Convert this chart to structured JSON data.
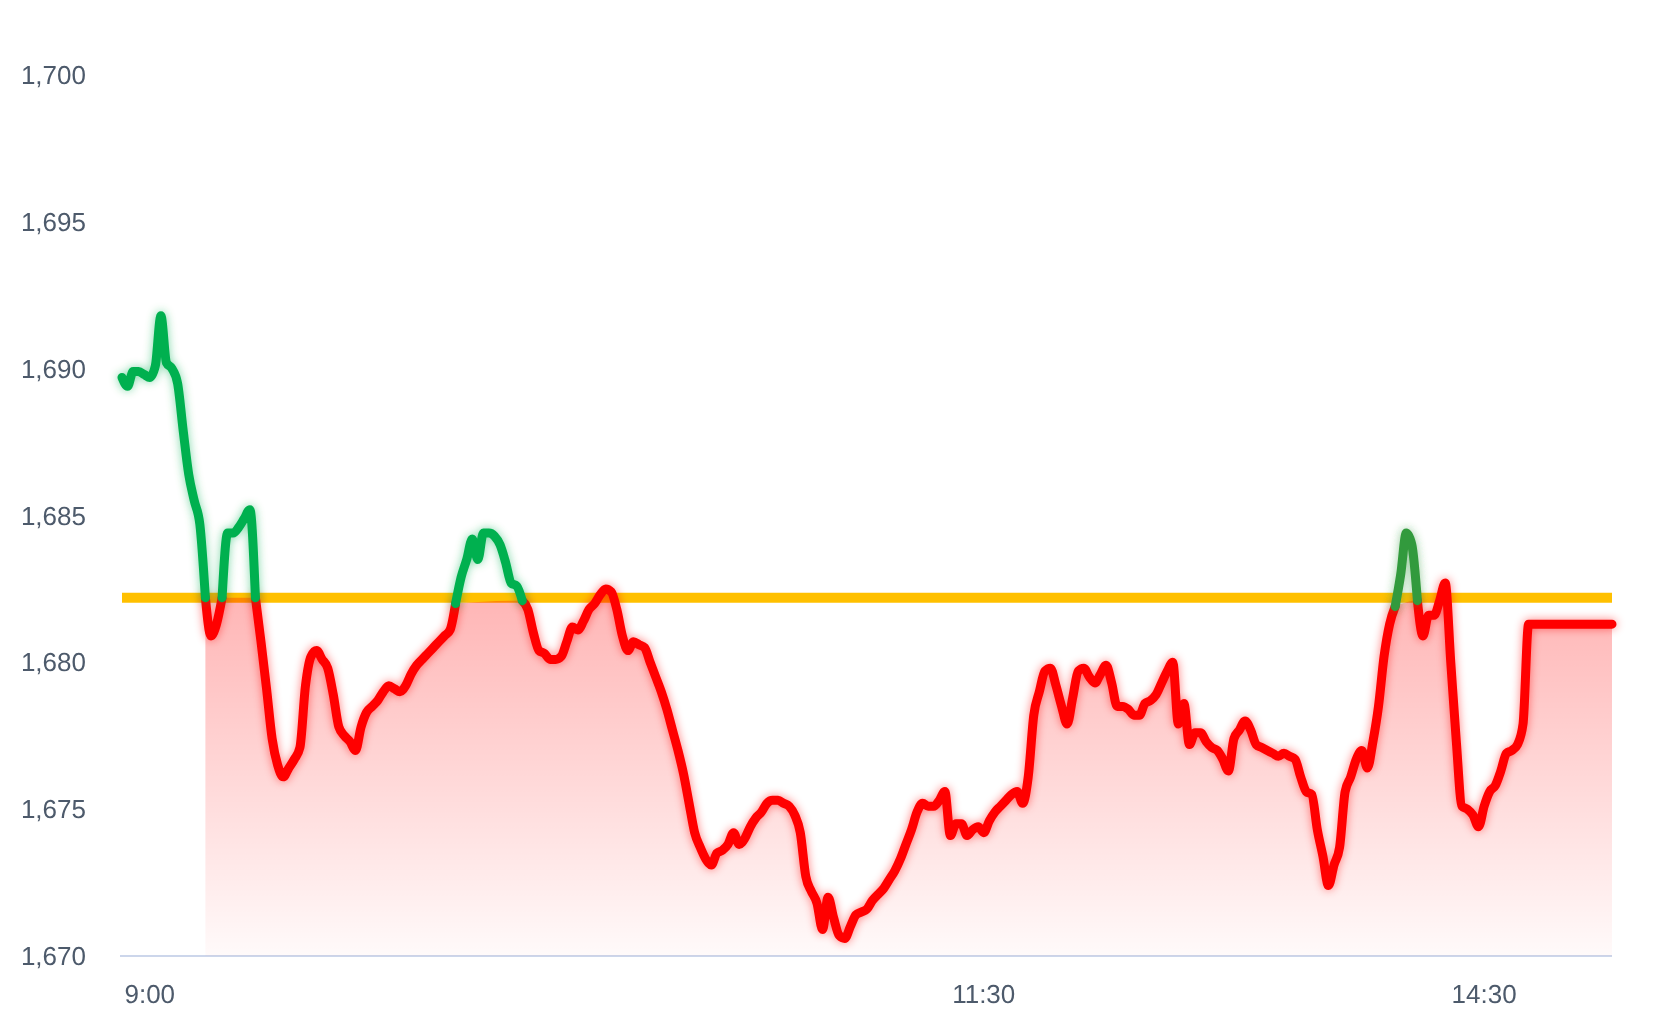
{
  "chart_data": {
    "type": "line",
    "categories": [
      null,
      null,
      null,
      null,
      null,
      "9:00",
      null,
      null,
      null,
      null,
      null,
      null,
      null,
      null,
      null,
      null,
      null,
      null,
      null,
      null,
      null,
      null,
      null,
      null,
      null,
      null,
      null,
      null,
      null,
      null,
      null,
      null,
      null,
      null,
      null,
      null,
      null,
      null,
      null,
      null,
      null,
      null,
      null,
      null,
      null,
      null,
      null,
      null,
      null,
      null,
      null,
      null,
      null,
      null,
      null,
      null,
      null,
      null,
      null,
      null,
      null,
      null,
      null,
      null,
      null,
      null,
      null,
      null,
      null,
      null,
      null,
      null,
      null,
      null,
      null,
      null,
      null,
      null,
      null,
      null,
      null,
      null,
      null,
      null,
      null,
      null,
      null,
      null,
      null,
      null,
      null,
      null,
      null,
      null,
      null,
      null,
      null,
      null,
      null,
      null,
      null,
      null,
      null,
      null,
      null,
      null,
      null,
      null,
      null,
      null,
      null,
      null,
      null,
      null,
      null,
      null,
      null,
      null,
      null,
      null,
      null,
      null,
      null,
      null,
      null,
      null,
      null,
      null,
      null,
      null,
      null,
      null,
      null,
      null,
      null,
      null,
      null,
      null,
      null,
      null,
      null,
      null,
      null,
      null,
      null,
      null,
      null,
      null,
      null,
      null,
      null,
      null,
      null,
      null,
      null,
      "11:30",
      null,
      null,
      null,
      null,
      null,
      null,
      null,
      null,
      null,
      null,
      null,
      null,
      null,
      null,
      null,
      null,
      null,
      null,
      null,
      null,
      null,
      null,
      null,
      null,
      null,
      null,
      null,
      null,
      null,
      null,
      null,
      null,
      null,
      null,
      null,
      null,
      null,
      null,
      null,
      null,
      null,
      null,
      null,
      null,
      null,
      null,
      null,
      null,
      null,
      null,
      null,
      null,
      null,
      null,
      null,
      null,
      null,
      null,
      null,
      null,
      null,
      null,
      null,
      null,
      null,
      null,
      null,
      null,
      null,
      null,
      null,
      null,
      null,
      null,
      null,
      null,
      null,
      null,
      null,
      null,
      null,
      null,
      null,
      null,
      null,
      null,
      null,
      null,
      null,
      "14:30",
      null,
      null,
      null,
      null,
      null,
      null,
      null,
      null,
      null,
      null,
      null,
      null,
      null,
      null,
      null,
      null,
      null,
      null,
      null,
      null,
      null,
      null,
      null
    ],
    "ylim": [
      1670,
      1700
    ],
    "yticks": [
      {
        "value": 1670,
        "label": "1,670"
      },
      {
        "value": 1675,
        "label": "1,675"
      },
      {
        "value": 1680,
        "label": "1,680"
      },
      {
        "value": 1685,
        "label": "1,685"
      },
      {
        "value": 1690,
        "label": "1,690"
      },
      {
        "value": 1695,
        "label": "1,695"
      },
      {
        "value": 1700,
        "label": "1,700"
      }
    ],
    "series": [
      {
        "type": "area",
        "color": "#ff0000",
        "values": [
          null,
          null,
          null,
          null,
          null,
          null,
          null,
          null,
          null,
          null,
          null,
          null,
          null,
          null,
          null,
          1682.2,
          1680.9,
          1681.3,
          1682.2,
          null,
          null,
          null,
          null,
          null,
          1682.2,
          1680.7,
          1679.1,
          1677.4,
          1676.5,
          1676.1,
          1676.4,
          1676.7,
          1677.1,
          1679.2,
          1680.2,
          1680.4,
          1680.1,
          1679.8,
          1678.9,
          1677.8,
          1677.5,
          1677.3,
          1677.0,
          1677.8,
          1678.3,
          1678.5,
          1678.7,
          1679.0,
          1679.2,
          1679.1,
          1679.0,
          1679.2,
          1679.6,
          1679.9,
          1680.1,
          1680.3,
          1680.5,
          1680.7,
          1680.9,
          1681.1,
          1682.0,
          null,
          null,
          null,
          null,
          null,
          null,
          null,
          null,
          null,
          null,
          null,
          1682.1,
          1681.8,
          1681.0,
          1680.4,
          1680.3,
          1680.1,
          1680.1,
          1680.2,
          1680.7,
          1681.2,
          1681.1,
          1681.4,
          1681.8,
          1682.0,
          1682.3,
          1682.5,
          1682.4,
          1681.8,
          1680.9,
          1680.4,
          1680.7,
          1680.6,
          1680.5,
          1680.0,
          1679.5,
          1679.0,
          1678.4,
          1677.7,
          1677.0,
          1676.2,
          1675.2,
          1674.2,
          1673.7,
          1673.3,
          1673.1,
          1673.5,
          1673.6,
          1673.8,
          1674.2,
          1673.8,
          1674.0,
          1674.4,
          1674.7,
          1674.9,
          1675.2,
          1675.3,
          1675.3,
          1675.2,
          1675.1,
          1674.8,
          1674.2,
          1672.7,
          1672.2,
          1671.8,
          1670.9,
          1672.0,
          1671.3,
          1670.7,
          1670.6,
          1671.0,
          1671.4,
          1671.5,
          1671.6,
          1671.9,
          1672.1,
          1672.3,
          1672.6,
          1672.9,
          1673.3,
          1673.8,
          1674.3,
          1674.9,
          1675.2,
          1675.1,
          1675.1,
          1675.3,
          1675.6,
          1674.1,
          1674.5,
          1674.5,
          1674.1,
          1674.3,
          1674.4,
          1674.2,
          1674.6,
          1674.9,
          1675.1,
          1675.3,
          1675.5,
          1675.6,
          1675.2,
          1676.1,
          1678.2,
          1679.0,
          1679.7,
          1679.8,
          1679.2,
          1678.5,
          1677.9,
          1678.8,
          1679.7,
          1679.8,
          1679.5,
          1679.3,
          1679.6,
          1679.9,
          1679.3,
          1678.5,
          1678.5,
          1678.4,
          1678.2,
          1678.2,
          1678.6,
          1678.7,
          1678.9,
          1679.3,
          1679.7,
          1680.0,
          1677.9,
          1678.6,
          1677.2,
          1677.6,
          1677.6,
          1677.3,
          1677.1,
          1677.0,
          1676.7,
          1676.3,
          1677.4,
          1677.7,
          1678.0,
          1677.7,
          1677.2,
          1677.1,
          1677.0,
          1676.9,
          1676.8,
          1676.9,
          1676.8,
          1676.7,
          1676.1,
          1675.6,
          1675.5,
          1674.3,
          1673.4,
          1672.4,
          1673.1,
          1673.7,
          1675.6,
          1676.1,
          1676.7,
          1677.0,
          1676.4,
          1677.3,
          1678.5,
          1680.2,
          1681.3,
          1681.9,
          null,
          null,
          null,
          1682.1,
          1680.9,
          1681.6,
          1681.6,
          1682.1,
          1682.7,
          1680.0,
          1677.3,
          1675.1,
          1675.0,
          1674.8,
          1674.4,
          1675.1,
          1675.6,
          1675.8,
          1676.3,
          1676.9,
          1677.0,
          1677.2,
          1677.9,
          1681.3,
          1681.3,
          1681.3,
          1681.3,
          1681.3,
          1681.3,
          1681.3,
          1681.3,
          1681.3,
          1681.3,
          1681.3,
          1681.3,
          1681.3,
          1681.3,
          1681.3,
          1681.3
        ]
      },
      {
        "color": "#00b050",
        "values": [
          1689.7,
          1689.4,
          1689.9,
          1689.9,
          1689.8,
          1689.7,
          1690.1,
          1691.8,
          1690.2,
          1690.0,
          1689.5,
          1687.9,
          1686.4,
          1685.5,
          1684.7,
          1682.2,
          null,
          null,
          1682.2,
          1684.4,
          1684.4,
          1684.6,
          1684.9,
          1685.2,
          1682.2,
          null,
          null,
          null,
          null,
          null,
          null,
          null,
          null,
          null,
          null,
          null,
          null,
          null,
          null,
          null,
          null,
          null,
          null,
          null,
          null,
          null,
          null,
          null,
          null,
          null,
          null,
          null,
          null,
          null,
          null,
          null,
          null,
          null,
          null,
          null,
          1682.0,
          1682.9,
          1683.5,
          1684.2,
          1683.5,
          1684.4,
          1684.4,
          1684.3,
          1684.0,
          1683.4,
          1682.7,
          1682.6,
          1682.1,
          null,
          null,
          null,
          null,
          null,
          null,
          null,
          null,
          null,
          null,
          null,
          null,
          null,
          null,
          null,
          null,
          null,
          null,
          null,
          null,
          null,
          null,
          null,
          null,
          null,
          null,
          null,
          null,
          null,
          null,
          null,
          null,
          null,
          null,
          null,
          null,
          null,
          null,
          null,
          null,
          null,
          null,
          null,
          null,
          null,
          null,
          null,
          null,
          null,
          null,
          null,
          null,
          null,
          null,
          null,
          null,
          null,
          null,
          null,
          null,
          null,
          null,
          null,
          null,
          null,
          null,
          null,
          null,
          null,
          null,
          null,
          null,
          null,
          null,
          null,
          null,
          null,
          null,
          null,
          null,
          null,
          null,
          null,
          null,
          null,
          null,
          null,
          null,
          null,
          null,
          null,
          null,
          null,
          null,
          null,
          null,
          null,
          null,
          null,
          null,
          null,
          null,
          null,
          null,
          null,
          null,
          null,
          null,
          null,
          null,
          null,
          null,
          null,
          null,
          null,
          null,
          null,
          null,
          null,
          null,
          null,
          null,
          null,
          null,
          null,
          null,
          null,
          null,
          null,
          null,
          null,
          null,
          null,
          null,
          null,
          null,
          null,
          null,
          null,
          null,
          null,
          null,
          null,
          null,
          null,
          null,
          null,
          null,
          null,
          null,
          null,
          null,
          null,
          null,
          null,
          null,
          null,
          null,
          null,
          null,
          null,
          null,
          null,
          null,
          null,
          null,
          null,
          null,
          null,
          null,
          null,
          null,
          null,
          null,
          null,
          null,
          null,
          null,
          null,
          null,
          null,
          null,
          null,
          null,
          null,
          null,
          null,
          null,
          null,
          null,
          null,
          null,
          null,
          null,
          null,
          null
        ]
      },
      {
        "color": "#339a3c",
        "values": [
          null,
          null,
          null,
          null,
          null,
          null,
          null,
          null,
          null,
          null,
          null,
          null,
          null,
          null,
          null,
          null,
          null,
          null,
          null,
          null,
          null,
          null,
          null,
          null,
          null,
          null,
          null,
          null,
          null,
          null,
          null,
          null,
          null,
          null,
          null,
          null,
          null,
          null,
          null,
          null,
          null,
          null,
          null,
          null,
          null,
          null,
          null,
          null,
          null,
          null,
          null,
          null,
          null,
          null,
          null,
          null,
          null,
          null,
          null,
          null,
          null,
          null,
          null,
          null,
          null,
          null,
          null,
          null,
          null,
          null,
          null,
          null,
          null,
          null,
          null,
          null,
          null,
          null,
          null,
          null,
          null,
          null,
          null,
          null,
          null,
          null,
          null,
          null,
          null,
          null,
          null,
          null,
          null,
          null,
          null,
          null,
          null,
          null,
          null,
          null,
          null,
          null,
          null,
          null,
          null,
          null,
          null,
          null,
          null,
          null,
          null,
          null,
          null,
          null,
          null,
          null,
          null,
          null,
          null,
          null,
          null,
          null,
          null,
          null,
          null,
          null,
          null,
          null,
          null,
          null,
          null,
          null,
          null,
          null,
          null,
          null,
          null,
          null,
          null,
          null,
          null,
          null,
          null,
          null,
          null,
          null,
          null,
          null,
          null,
          null,
          null,
          null,
          null,
          null,
          null,
          null,
          null,
          null,
          null,
          null,
          null,
          null,
          null,
          null,
          null,
          null,
          null,
          null,
          null,
          null,
          null,
          null,
          null,
          null,
          null,
          null,
          null,
          null,
          null,
          null,
          null,
          null,
          null,
          null,
          null,
          null,
          null,
          null,
          null,
          null,
          null,
          null,
          null,
          null,
          null,
          null,
          null,
          null,
          null,
          null,
          null,
          null,
          null,
          null,
          null,
          null,
          null,
          null,
          null,
          null,
          null,
          null,
          null,
          null,
          null,
          null,
          null,
          null,
          null,
          null,
          null,
          null,
          null,
          null,
          null,
          null,
          null,
          null,
          null,
          1681.9,
          1683.0,
          1684.4,
          1684.0,
          1682.1,
          null,
          null,
          null,
          null,
          null,
          null,
          null,
          null,
          null,
          null,
          null,
          null,
          null,
          null,
          null,
          null,
          null,
          null,
          null,
          null,
          null,
          null,
          null,
          null,
          null,
          null,
          null,
          null,
          null,
          null,
          null,
          null,
          null,
          null,
          null
        ]
      }
    ],
    "ref_lines": [
      {
        "axis": "y",
        "value": 1682.2,
        "color": "#ffc000"
      }
    ]
  }
}
